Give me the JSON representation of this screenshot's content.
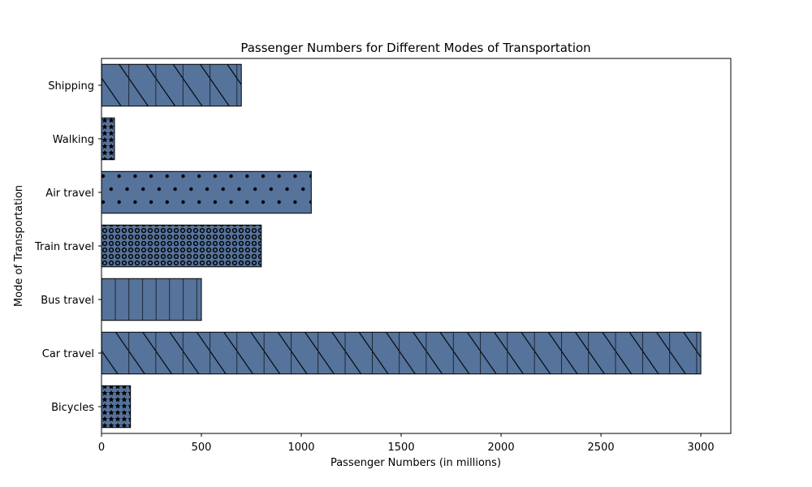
{
  "chart_data": {
    "type": "bar",
    "orientation": "horizontal",
    "title": "Passenger Numbers for Different Modes of Transportation",
    "xlabel": "Passenger Numbers (in millions)",
    "ylabel": "Mode of Transportation",
    "xlim": [
      0,
      3150
    ],
    "x_ticks": [
      "0",
      "500",
      "1000",
      "1500",
      "2000",
      "2500",
      "3000"
    ],
    "categories": [
      "Bicycles",
      "Car travel",
      "Bus travel",
      "Train travel",
      "Air travel",
      "Walking",
      "Shipping"
    ],
    "values": [
      145,
      3000,
      500,
      800,
      1050,
      65,
      700
    ],
    "hatches": [
      "stars",
      "diagonal-vertical",
      "vertical",
      "circles",
      "dots",
      "stars",
      "diagonal-vertical"
    ],
    "bar_color": "#55739b",
    "edge_color": "#000000",
    "grid": false
  }
}
